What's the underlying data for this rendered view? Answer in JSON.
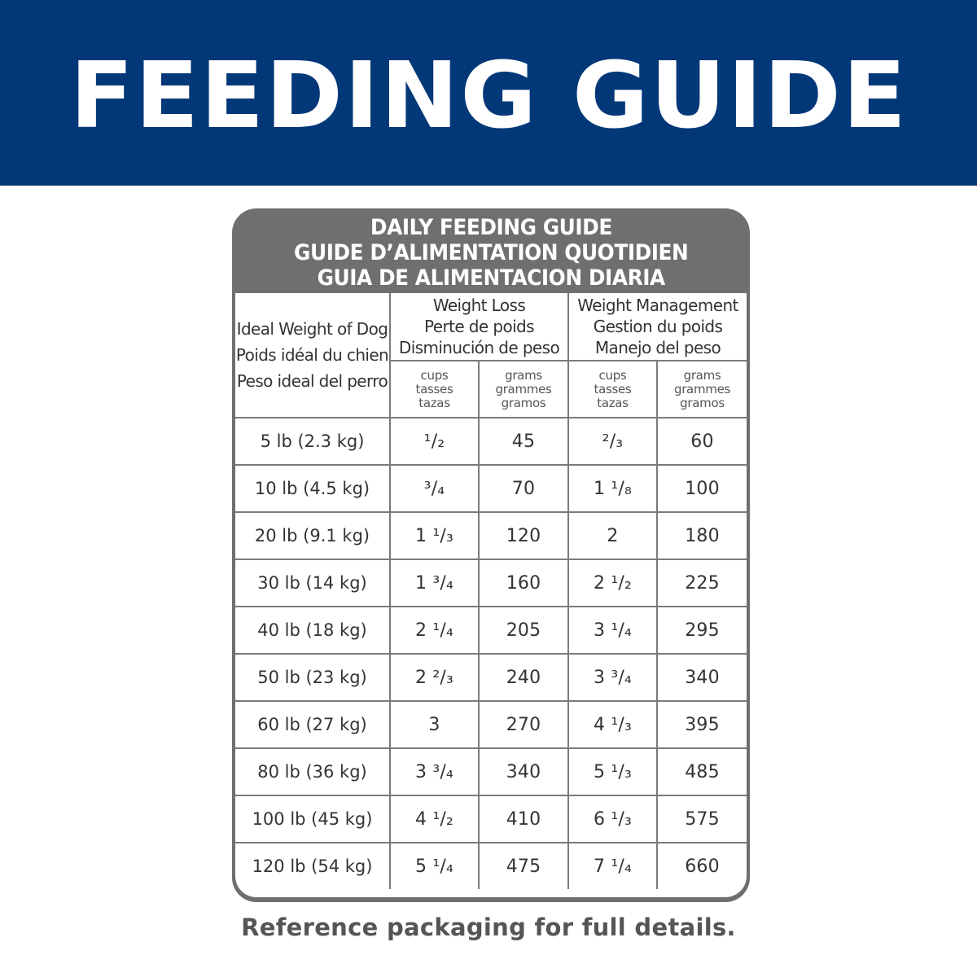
{
  "banner": {
    "title": "FEEDING GUIDE"
  },
  "card": {
    "title_lines": [
      "DAILY FEEDING GUIDE",
      "GUIDE D’ALIMENTATION QUOTIDIEN",
      "GUIA DE ALIMENTACION DIARIA"
    ]
  },
  "table": {
    "weight_header": [
      "Ideal Weight of Dog",
      "Poids idéal du chien",
      "Peso ideal del perro"
    ],
    "groups": [
      {
        "lines": [
          "Weight Loss",
          "Perte de poids",
          "Disminución de peso"
        ]
      },
      {
        "lines": [
          "Weight Management",
          "Gestion du poids",
          "Manejo del peso"
        ]
      }
    ],
    "units": [
      [
        "cups",
        "tasses",
        "tazas"
      ],
      [
        "grams",
        "grammes",
        "gramos"
      ],
      [
        "cups",
        "tasses",
        "tazas"
      ],
      [
        "grams",
        "grammes",
        "gramos"
      ]
    ],
    "rows": [
      [
        "5 lb (2.3 kg)",
        "¹/₂",
        "45",
        "²/₃",
        "60"
      ],
      [
        "10 lb (4.5 kg)",
        "³/₄",
        "70",
        "1 ¹/₈",
        "100"
      ],
      [
        "20 lb (9.1 kg)",
        "1 ¹/₃",
        "120",
        "2",
        "180"
      ],
      [
        "30 lb (14 kg)",
        "1 ³/₄",
        "160",
        "2 ¹/₂",
        "225"
      ],
      [
        "40 lb (18 kg)",
        "2 ¹/₄",
        "205",
        "3 ¹/₄",
        "295"
      ],
      [
        "50 lb (23 kg)",
        "2 ²/₃",
        "240",
        "3 ³/₄",
        "340"
      ],
      [
        "60 lb (27 kg)",
        "3",
        "270",
        "4 ¹/₃",
        "395"
      ],
      [
        "80 lb (36 kg)",
        "3 ³/₄",
        "340",
        "5 ¹/₃",
        "485"
      ],
      [
        "100 lb (45 kg)",
        "4 ¹/₂",
        "410",
        "6 ¹/₃",
        "575"
      ],
      [
        "120 lb (54 kg)",
        "5 ¹/₄",
        "475",
        "7 ¹/₄",
        "660"
      ]
    ]
  },
  "footnote": "Reference packaging for full details.",
  "colors": {
    "banner": "#033878",
    "card": "#6f6f72",
    "text": "#333338"
  }
}
